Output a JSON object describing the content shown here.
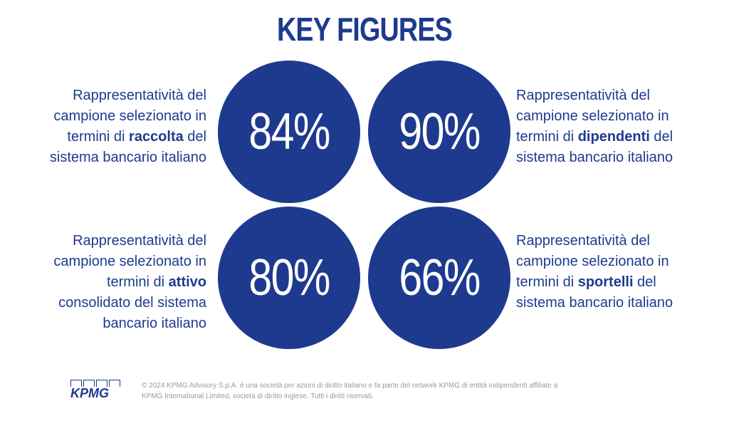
{
  "title": "KEY FIGURES",
  "figures": [
    {
      "value": "84%",
      "lines": [
        "Rappresentatività del",
        "campione selezionato in",
        "termini di ",
        "raccolta",
        " del",
        "sistema bancario italiano"
      ]
    },
    {
      "value": "90%",
      "lines": [
        "Rappresentatività del",
        "campione selezionato in",
        "termini di ",
        "dipendenti",
        " del",
        "sistema bancario italiano"
      ]
    },
    {
      "value": "80%",
      "lines": [
        "Rappresentatività del",
        "campione selezionato in",
        "termini di ",
        "attivo",
        "consolidato del sistema",
        "bancario italiano"
      ]
    },
    {
      "value": "66%",
      "lines": [
        "Rappresentatività del",
        "campione selezionato in",
        "termini di ",
        "sportelli",
        " del",
        "sistema bancario italiano"
      ]
    }
  ],
  "logo": {
    "text": "KPMG"
  },
  "footer": {
    "line1": "© 2024 KPMG Advisory S.p.A. è una società per azioni di diritto italiano e fa parte del network KPMG di entità indipendenti affiliate a",
    "line2": "KPMG International Limited, società di diritto inglese. Tutti i diritti riservati."
  },
  "colors": {
    "brand_blue": "#1e3a8f",
    "footer_gray": "#9a9a9a",
    "background": "#ffffff"
  }
}
